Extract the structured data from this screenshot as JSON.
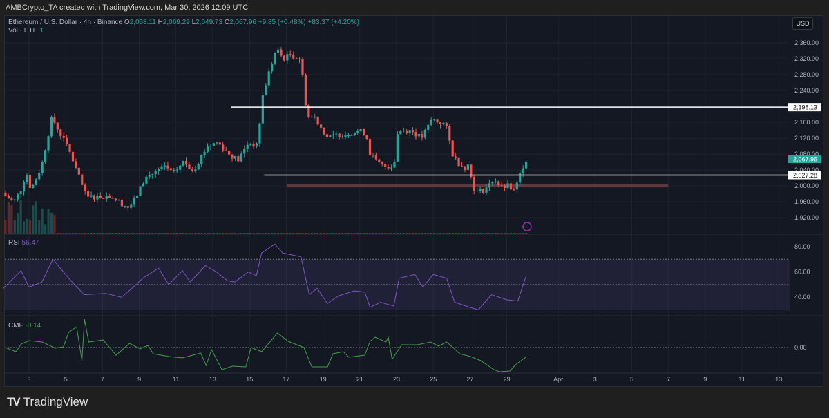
{
  "header": {
    "attribution": "AMBCrypto_TA created with TradingView.com, Mar 30, 2026 12:09 UTC"
  },
  "symbol": {
    "title": "Ethereum / U.S. Dollar · 4h · Binance",
    "open_label": "O",
    "open": "2,058.11",
    "high_label": "H",
    "high": "2,069.29",
    "low_label": "L",
    "low": "2,049.73",
    "close_label": "C",
    "close": "2,067.96",
    "change": "+9.85 (+0.48%)",
    "change2": "+83.37 (+4.20%)",
    "volume_label": "Vol · ETH",
    "volume": "1"
  },
  "currency": "USD",
  "colors": {
    "up": "#26a69a",
    "down": "#ef5350",
    "rsi": "#7e57c2",
    "cmf": "#43a047",
    "zone": "#5c3a3f",
    "background": "#141823"
  },
  "price_axis": {
    "ticks": [
      "2,360.00",
      "2,320.00",
      "2,280.00",
      "2,240.00",
      "2,160.00",
      "2,120.00",
      "2,080.00",
      "2,040.00",
      "2,000.00",
      "1,960.00",
      "1,920.00"
    ],
    "tick_values": [
      2360,
      2320,
      2280,
      2240,
      2160,
      2120,
      2080,
      2040,
      2000,
      1960,
      1920
    ]
  },
  "levels": [
    {
      "value": 2198.13,
      "label": "2,198.13",
      "from_day": 14.0
    },
    {
      "value": 2027.28,
      "label": "2,027.28",
      "from_day": 15.8
    }
  ],
  "zone": {
    "value": 2000,
    "from_day": 17.0,
    "to_day": 37.8
  },
  "last_price": {
    "value": 2067.96,
    "label": "2,067.96"
  },
  "chart_data": {
    "type": "candlestick",
    "interval": "4h",
    "close_path": [
      [
        1.72,
        1975
      ],
      [
        2.17,
        1960
      ],
      [
        2.55,
        1990
      ],
      [
        2.85,
        2035
      ],
      [
        3.11,
        1990
      ],
      [
        3.68,
        2050
      ],
      [
        4.24,
        2172
      ],
      [
        4.5,
        2150
      ],
      [
        5.18,
        2090
      ],
      [
        6.12,
        1972
      ],
      [
        7.44,
        1975
      ],
      [
        8.38,
        1946
      ],
      [
        8.75,
        1965
      ],
      [
        9.32,
        2020
      ],
      [
        10.44,
        2050
      ],
      [
        10.82,
        2030
      ],
      [
        11.38,
        2060
      ],
      [
        11.95,
        2040
      ],
      [
        12.7,
        2100
      ],
      [
        13.26,
        2110
      ],
      [
        13.83,
        2082
      ],
      [
        14.39,
        2065
      ],
      [
        14.95,
        2110
      ],
      [
        15.41,
        2100
      ],
      [
        15.71,
        2225
      ],
      [
        16.08,
        2290
      ],
      [
        16.46,
        2345
      ],
      [
        16.83,
        2320
      ],
      [
        17.21,
        2330
      ],
      [
        17.77,
        2320
      ],
      [
        18.15,
        2172
      ],
      [
        18.53,
        2175
      ],
      [
        18.9,
        2146
      ],
      [
        19.28,
        2120
      ],
      [
        19.84,
        2130
      ],
      [
        20.22,
        2130
      ],
      [
        20.97,
        2140
      ],
      [
        21.35,
        2130
      ],
      [
        21.53,
        2085
      ],
      [
        21.91,
        2060
      ],
      [
        22.29,
        2050
      ],
      [
        22.85,
        2050
      ],
      [
        23.04,
        2130
      ],
      [
        23.23,
        2140
      ],
      [
        23.79,
        2140
      ],
      [
        24.35,
        2120
      ],
      [
        24.73,
        2150
      ],
      [
        24.92,
        2170
      ],
      [
        25.29,
        2160
      ],
      [
        25.67,
        2155
      ],
      [
        26.05,
        2080
      ],
      [
        26.42,
        2055
      ],
      [
        26.8,
        2045
      ],
      [
        26.98,
        2060
      ],
      [
        27.1,
        2000
      ],
      [
        27.36,
        1985
      ],
      [
        27.74,
        1990
      ],
      [
        28.11,
        2005
      ],
      [
        28.3,
        2020
      ],
      [
        28.68,
        1995
      ],
      [
        29.05,
        2000
      ],
      [
        29.43,
        1985
      ],
      [
        29.69,
        2025
      ],
      [
        29.92,
        2055
      ],
      [
        30.07,
        2068
      ]
    ],
    "rsi": {
      "label": "RSI",
      "value": "56.47",
      "levels": [
        70,
        50,
        30
      ],
      "ticks": [
        "80.00",
        "60.00",
        "40.00"
      ],
      "tick_values": [
        80,
        60,
        40
      ],
      "path": [
        [
          1.6,
          47
        ],
        [
          2.57,
          61
        ],
        [
          3.0,
          48
        ],
        [
          3.7,
          52
        ],
        [
          4.3,
          70
        ],
        [
          5.16,
          55
        ],
        [
          6.0,
          42
        ],
        [
          7.17,
          43
        ],
        [
          8.03,
          40
        ],
        [
          8.6,
          47
        ],
        [
          9.19,
          55
        ],
        [
          10.05,
          63
        ],
        [
          10.6,
          50
        ],
        [
          11.35,
          61
        ],
        [
          11.77,
          52
        ],
        [
          12.6,
          65
        ],
        [
          13.2,
          60
        ],
        [
          13.8,
          53
        ],
        [
          14.2,
          52
        ],
        [
          14.94,
          60
        ],
        [
          15.37,
          57
        ],
        [
          15.66,
          75
        ],
        [
          16.38,
          82
        ],
        [
          16.8,
          75
        ],
        [
          17.8,
          72
        ],
        [
          18.25,
          42
        ],
        [
          18.68,
          47
        ],
        [
          19.24,
          35
        ],
        [
          19.83,
          41
        ],
        [
          20.7,
          45
        ],
        [
          21.27,
          44
        ],
        [
          21.56,
          32
        ],
        [
          22.13,
          36
        ],
        [
          22.85,
          33
        ],
        [
          23.14,
          55
        ],
        [
          24.0,
          58
        ],
        [
          24.43,
          48
        ],
        [
          25.0,
          58
        ],
        [
          25.73,
          55
        ],
        [
          26.16,
          36
        ],
        [
          27.0,
          32
        ],
        [
          27.45,
          30
        ],
        [
          28.17,
          42
        ],
        [
          29.0,
          38
        ],
        [
          29.6,
          37
        ],
        [
          30.03,
          56
        ]
      ]
    },
    "cmf": {
      "label": "CMF",
      "value": "-0.14",
      "ticks": [
        "0.00"
      ],
      "tick_values": [
        0
      ],
      "path": [
        [
          1.71,
          0
        ],
        [
          2.29,
          -0.06
        ],
        [
          2.57,
          0.05
        ],
        [
          3.0,
          0.1
        ],
        [
          3.71,
          0.08
        ],
        [
          4.44,
          -0.01
        ],
        [
          4.87,
          0.01
        ],
        [
          5.16,
          0.22
        ],
        [
          5.59,
          0.3
        ],
        [
          5.88,
          -0.19
        ],
        [
          6.02,
          0.41
        ],
        [
          6.25,
          0.08
        ],
        [
          7.03,
          0.11
        ],
        [
          7.74,
          -0.11
        ],
        [
          8.47,
          0.06
        ],
        [
          9.04,
          -0.02
        ],
        [
          9.47,
          0.03
        ],
        [
          9.76,
          -0.09
        ],
        [
          10.62,
          -0.13
        ],
        [
          11.34,
          -0.15
        ],
        [
          12.35,
          -0.08
        ],
        [
          12.64,
          -0.26
        ],
        [
          12.93,
          -0.03
        ],
        [
          13.5,
          -0.32
        ],
        [
          14.07,
          -0.27
        ],
        [
          14.8,
          -0.28
        ],
        [
          15.08,
          0
        ],
        [
          15.66,
          -0.06
        ],
        [
          16.52,
          0.21
        ],
        [
          17.1,
          0.09
        ],
        [
          17.96,
          0
        ],
        [
          18.39,
          -0.28
        ],
        [
          19.24,
          -0.28
        ],
        [
          19.54,
          -0.09
        ],
        [
          20.1,
          -0.06
        ],
        [
          20.41,
          -0.14
        ],
        [
          21.27,
          -0.11
        ],
        [
          21.56,
          0.09
        ],
        [
          21.84,
          0.15
        ],
        [
          22.42,
          0.08
        ],
        [
          22.55,
          0.15
        ],
        [
          22.76,
          -0.17
        ],
        [
          23.28,
          0.04
        ],
        [
          24.14,
          0.04
        ],
        [
          24.86,
          0.08
        ],
        [
          25.29,
          0.02
        ],
        [
          25.72,
          0.08
        ],
        [
          26.16,
          -0.02
        ],
        [
          26.44,
          -0.09
        ],
        [
          27.02,
          -0.13
        ],
        [
          27.59,
          -0.19
        ],
        [
          28.3,
          -0.32
        ],
        [
          28.6,
          -0.35
        ],
        [
          29.17,
          -0.34
        ],
        [
          29.47,
          -0.25
        ],
        [
          30.03,
          -0.14
        ]
      ]
    },
    "x_ticks": [
      {
        "day": 3,
        "label": "3"
      },
      {
        "day": 5,
        "label": "5"
      },
      {
        "day": 7,
        "label": "7"
      },
      {
        "day": 9,
        "label": "9"
      },
      {
        "day": 11,
        "label": "11"
      },
      {
        "day": 13,
        "label": "13"
      },
      {
        "day": 15,
        "label": "15"
      },
      {
        "day": 17,
        "label": "17"
      },
      {
        "day": 19,
        "label": "19"
      },
      {
        "day": 21,
        "label": "21"
      },
      {
        "day": 23,
        "label": "23"
      },
      {
        "day": 25,
        "label": "25"
      },
      {
        "day": 27,
        "label": "27"
      },
      {
        "day": 29,
        "label": "29"
      },
      {
        "day": 31.8,
        "label": "Apr"
      },
      {
        "day": 33.8,
        "label": "3"
      },
      {
        "day": 35.8,
        "label": "5"
      },
      {
        "day": 37.8,
        "label": "7"
      },
      {
        "day": 39.8,
        "label": "9"
      },
      {
        "day": 41.8,
        "label": "11"
      },
      {
        "day": 43.8,
        "label": "13"
      }
    ]
  },
  "footer": {
    "logo_mark": "17",
    "brand": "TradingView"
  }
}
